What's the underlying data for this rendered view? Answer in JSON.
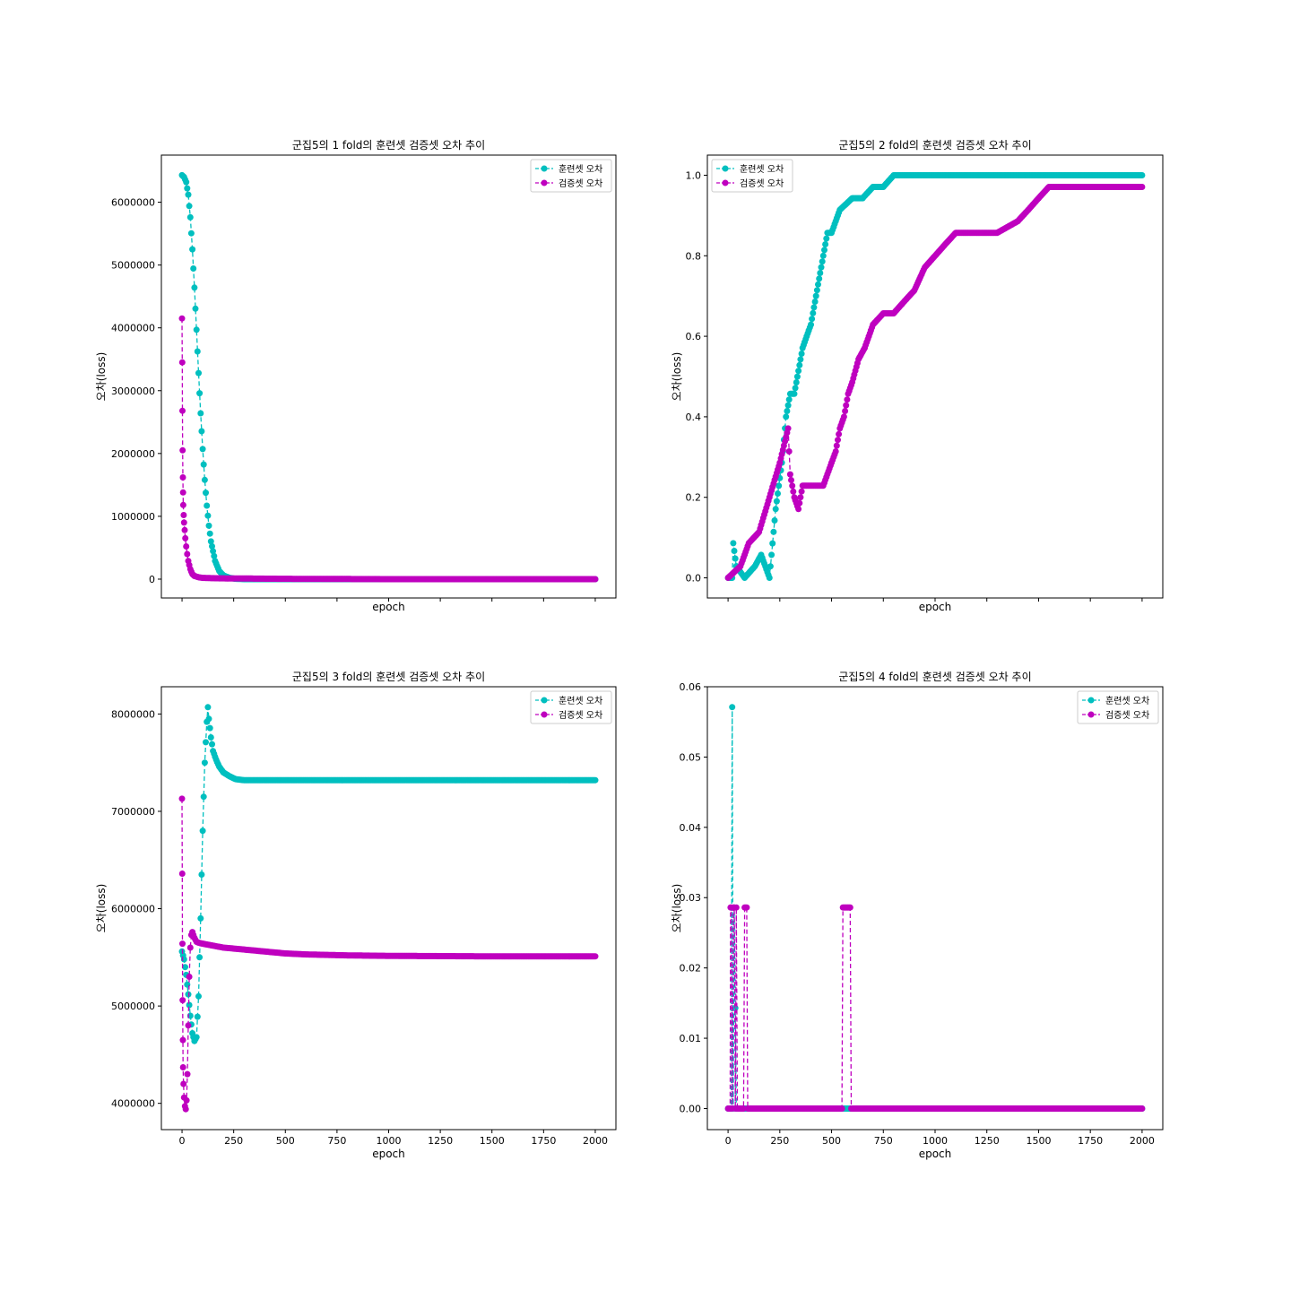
{
  "colors": {
    "train": "#00bfbf",
    "val": "#bf00bf",
    "frame": "#000000"
  },
  "chart_data": [
    {
      "type": "line",
      "title": "군집5의 1 fold의 훈련셋 검증셋 오차 추이",
      "xlabel": "epoch",
      "ylabel": "오차(loss)",
      "xlim": [
        -100,
        2100
      ],
      "ylim": [
        -300000,
        6750000
      ],
      "yticks": [
        0,
        1000000,
        2000000,
        3000000,
        4000000,
        5000000,
        6000000
      ],
      "ytick_labels": [
        "0",
        "1000000",
        "2000000",
        "3000000",
        "4000000",
        "5000000",
        "6000000"
      ],
      "xticks": [
        0,
        250,
        500,
        750,
        1000,
        1250,
        1500,
        1750,
        2000
      ],
      "xtick_labels": [],
      "legend_loc": "upper right",
      "series": [
        {
          "name": "훈련셋 오차",
          "color_key": "train",
          "x": [
            0,
            10,
            20,
            30,
            40,
            50,
            60,
            70,
            80,
            90,
            100,
            110,
            120,
            130,
            140,
            160,
            180,
            200,
            230,
            260,
            300,
            400,
            600,
            1000,
            1500,
            2000
          ],
          "y": [
            6430000,
            6400000,
            6320000,
            6120000,
            5760000,
            5250000,
            4640000,
            3970000,
            3280000,
            2640000,
            2070000,
            1580000,
            1170000,
            850000,
            600000,
            290000,
            130000,
            60000,
            20000,
            5000,
            0,
            0,
            0,
            0,
            0,
            0
          ]
        },
        {
          "name": "검증셋 오차",
          "color_key": "val",
          "x": [
            0,
            1,
            2,
            3,
            4,
            5,
            6,
            8,
            10,
            13,
            16,
            20,
            25,
            30,
            40,
            50,
            60,
            80,
            100,
            150,
            200,
            300,
            500,
            1000,
            1500,
            2000
          ],
          "y": [
            4150000,
            3450000,
            2680000,
            2050000,
            1620000,
            1380000,
            1180000,
            1020000,
            900000,
            780000,
            650000,
            520000,
            400000,
            290000,
            160000,
            80000,
            50000,
            30000,
            20000,
            15000,
            12000,
            10000,
            5000,
            0,
            0,
            0
          ]
        }
      ]
    },
    {
      "type": "line",
      "title": "군집5의 2 fold의 훈련셋 검증셋 오차 추이",
      "xlabel": "epoch",
      "ylabel": "오차(loss)",
      "xlim": [
        -100,
        2100
      ],
      "ylim": [
        -0.05,
        1.05
      ],
      "yticks": [
        0.0,
        0.2,
        0.4,
        0.6,
        0.8,
        1.0
      ],
      "ytick_labels": [
        "0.0",
        "0.2",
        "0.4",
        "0.6",
        "0.8",
        "1.0"
      ],
      "xticks": [
        0,
        250,
        500,
        750,
        1000,
        1250,
        1500,
        1750,
        2000
      ],
      "xtick_labels": [],
      "legend_loc": "upper left",
      "series": [
        {
          "name": "훈련셋 오차",
          "color_key": "train",
          "x": [
            0,
            20,
            25,
            40,
            80,
            130,
            160,
            200,
            230,
            260,
            280,
            300,
            320,
            340,
            360,
            380,
            400,
            420,
            440,
            460,
            480,
            500,
            520,
            540,
            600,
            650,
            700,
            750,
            800,
            1000,
            1500,
            2000
          ],
          "y": [
            0.0,
            0.0,
            0.086,
            0.029,
            0.0,
            0.029,
            0.057,
            0.0,
            0.171,
            0.286,
            0.4,
            0.457,
            0.457,
            0.514,
            0.571,
            0.6,
            0.629,
            0.686,
            0.743,
            0.8,
            0.857,
            0.857,
            0.886,
            0.914,
            0.943,
            0.943,
            0.971,
            0.971,
            1.0,
            1.0,
            1.0,
            1.0
          ]
        },
        {
          "name": "검증셋 오차",
          "color_key": "val",
          "x": [
            0,
            60,
            100,
            150,
            200,
            250,
            290,
            300,
            320,
            340,
            360,
            400,
            460,
            500,
            520,
            540,
            560,
            580,
            600,
            630,
            660,
            700,
            750,
            800,
            850,
            900,
            950,
            1000,
            1050,
            1100,
            1200,
            1300,
            1400,
            1450,
            1500,
            1550,
            1600,
            1700,
            2000
          ],
          "y": [
            0.0,
            0.029,
            0.086,
            0.114,
            0.2,
            0.286,
            0.371,
            0.257,
            0.2,
            0.171,
            0.229,
            0.229,
            0.229,
            0.286,
            0.314,
            0.371,
            0.4,
            0.457,
            0.486,
            0.543,
            0.571,
            0.629,
            0.657,
            0.657,
            0.686,
            0.714,
            0.771,
            0.8,
            0.829,
            0.857,
            0.857,
            0.857,
            0.886,
            0.914,
            0.943,
            0.971,
            0.971,
            0.971,
            0.971
          ]
        }
      ]
    },
    {
      "type": "line",
      "title": "군집5의 3 fold의 훈련셋 검증셋 오차 추이",
      "xlabel": "epoch",
      "ylabel": "오차(loss)",
      "xlim": [
        -100,
        2100
      ],
      "ylim": [
        3730000,
        8280000
      ],
      "yticks": [
        4000000,
        5000000,
        6000000,
        7000000,
        8000000
      ],
      "ytick_labels": [
        "4000000",
        "5000000",
        "6000000",
        "7000000",
        "8000000"
      ],
      "xticks": [
        0,
        250,
        500,
        750,
        1000,
        1250,
        1500,
        1750,
        2000
      ],
      "xtick_labels": [
        "0",
        "250",
        "500",
        "750",
        "1000",
        "1250",
        "1500",
        "1750",
        "2000"
      ],
      "legend_loc": "upper right",
      "series": [
        {
          "name": "훈련셋 오차",
          "color_key": "train",
          "x": [
            0,
            10,
            20,
            30,
            40,
            50,
            60,
            70,
            80,
            90,
            100,
            110,
            120,
            125,
            130,
            140,
            150,
            165,
            180,
            200,
            230,
            260,
            300,
            350,
            400,
            500,
            700,
            1000,
            1500,
            2000
          ],
          "y": [
            5560000,
            5480000,
            5320000,
            5120000,
            4900000,
            4720000,
            4640000,
            4680000,
            5100000,
            5900000,
            6800000,
            7500000,
            7920000,
            8070000,
            7950000,
            7760000,
            7620000,
            7530000,
            7460000,
            7400000,
            7360000,
            7330000,
            7320000,
            7320000,
            7320000,
            7320000,
            7320000,
            7320000,
            7320000,
            7320000
          ]
        },
        {
          "name": "검증셋 오차",
          "color_key": "val",
          "x": [
            0,
            1,
            2,
            3,
            4,
            5,
            7,
            10,
            14,
            18,
            22,
            26,
            30,
            35,
            40,
            45,
            50,
            60,
            70,
            80,
            100,
            150,
            200,
            300,
            400,
            500,
            600,
            800,
            1000,
            1500,
            2000
          ],
          "y": [
            7130000,
            6360000,
            5640000,
            5060000,
            4650000,
            4370000,
            4200000,
            4060000,
            3970000,
            3940000,
            4030000,
            4300000,
            4800000,
            5300000,
            5600000,
            5730000,
            5760000,
            5700000,
            5660000,
            5650000,
            5640000,
            5620000,
            5600000,
            5580000,
            5560000,
            5540000,
            5530000,
            5520000,
            5515000,
            5510000,
            5510000
          ]
        }
      ]
    },
    {
      "type": "line",
      "title": "군집5의 4 fold의 훈련셋 검증셋 오차 추이",
      "xlabel": "epoch",
      "ylabel": "오차(loss)",
      "xlim": [
        -100,
        2100
      ],
      "ylim": [
        -0.003,
        0.06
      ],
      "yticks": [
        0.0,
        0.01,
        0.02,
        0.03,
        0.04,
        0.05,
        0.06
      ],
      "ytick_labels": [
        "0.00",
        "0.01",
        "0.02",
        "0.03",
        "0.04",
        "0.05",
        "0.06"
      ],
      "xticks": [
        0,
        250,
        500,
        750,
        1000,
        1250,
        1500,
        1750,
        2000
      ],
      "xtick_labels": [
        "0",
        "250",
        "500",
        "750",
        "1000",
        "1250",
        "1500",
        "1750",
        "2000"
      ],
      "legend_loc": "upper right",
      "series": [
        {
          "name": "훈련셋 오차",
          "color_key": "train",
          "x": [
            0,
            15,
            20,
            25,
            30,
            40,
            100,
            300,
            500,
            700,
            1000,
            1500,
            2000
          ],
          "y": [
            0.0,
            0.0,
            0.0571,
            0.0,
            0.0286,
            0.0,
            0.0,
            0.0,
            0.0,
            0.0,
            0.0,
            0.0,
            0.0
          ]
        },
        {
          "name": "검증셋 오차",
          "color_key": "val",
          "x": [
            0,
            10,
            12,
            15,
            20,
            25,
            30,
            35,
            40,
            45,
            60,
            75,
            80,
            85,
            90,
            95,
            100,
            200,
            400,
            550,
            555,
            560,
            570,
            580,
            590,
            595,
            600,
            800,
            1000,
            1500,
            2000
          ],
          "y": [
            0.0,
            0.0,
            0.0286,
            0.0286,
            0.0,
            0.0286,
            0.0286,
            0.0,
            0.0286,
            0.0,
            0.0,
            0.0,
            0.0286,
            0.0286,
            0.0286,
            0.0,
            0.0,
            0.0,
            0.0,
            0.0,
            0.0286,
            0.0286,
            0.0286,
            0.0286,
            0.0286,
            0.0,
            0.0,
            0.0,
            0.0,
            0.0,
            0.0
          ]
        }
      ]
    }
  ]
}
